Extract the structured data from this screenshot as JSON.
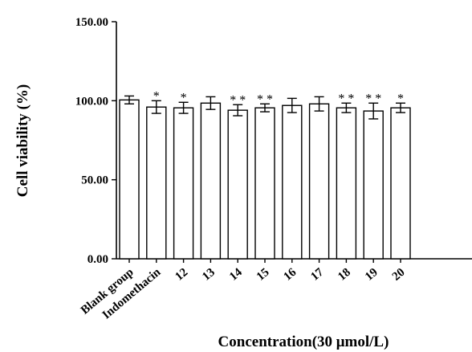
{
  "chart_data": {
    "type": "bar",
    "title": "",
    "xlabel": "Concentration(30 μmol/L)",
    "ylabel": "Cell viability (%)",
    "ylim": [
      0,
      150
    ],
    "yticks": [
      "0.00",
      "50.00",
      "100.00",
      "150.00"
    ],
    "ytick_values": [
      0,
      50,
      100,
      150
    ],
    "categories": [
      "Blank group",
      "Indomethacin",
      "12",
      "13",
      "14",
      "15",
      "16",
      "17",
      "18",
      "19",
      "20"
    ],
    "values": [
      100.5,
      96,
      95.5,
      98.5,
      94,
      95.5,
      97,
      98,
      95.5,
      93.5,
      95.5
    ],
    "errors": [
      2.5,
      4,
      3.5,
      4,
      3.5,
      2.5,
      4.5,
      4.5,
      3,
      5,
      3
    ],
    "significance": [
      "",
      "*",
      "*",
      "",
      "**",
      "**",
      "",
      "",
      "**",
      "**",
      "*"
    ],
    "grid": false,
    "legend": "none",
    "bar_fill": "#ffffff",
    "bar_stroke": "#000000"
  }
}
